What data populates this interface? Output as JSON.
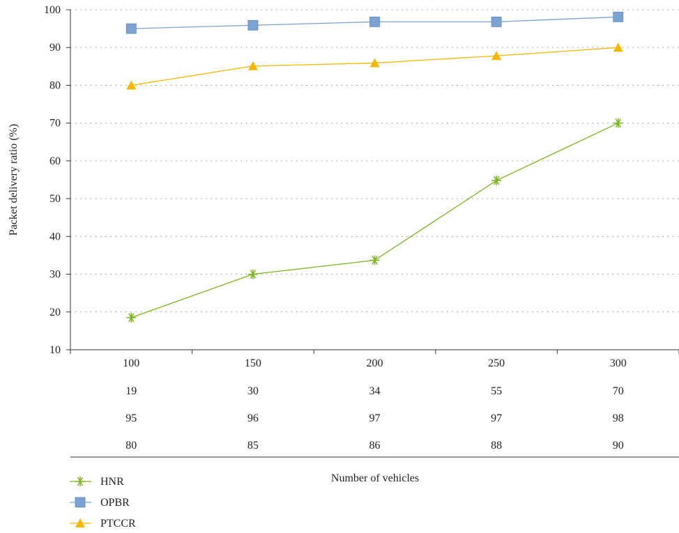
{
  "chart_data": {
    "type": "line",
    "categories": [
      "100",
      "150",
      "200",
      "250",
      "300"
    ],
    "series": [
      {
        "name": "HNR",
        "values": [
          18.5,
          30,
          33.7,
          54.8,
          70
        ],
        "table_values": [
          "19",
          "30",
          "34",
          "55",
          "70"
        ],
        "color": "#7ab51d",
        "marker": "asterisk"
      },
      {
        "name": "OPBR",
        "values": [
          95,
          95.9,
          96.8,
          96.8,
          98.1
        ],
        "table_values": [
          "95",
          "96",
          "97",
          "97",
          "98"
        ],
        "color": "#7ba3d4",
        "marker": "square"
      },
      {
        "name": "PTCCR",
        "values": [
          80,
          85.1,
          85.9,
          87.8,
          90
        ],
        "table_values": [
          "80",
          "85",
          "86",
          "88",
          "90"
        ],
        "color": "#f5b800",
        "marker": "triangle"
      }
    ],
    "title": "",
    "xlabel": "Number of vehicles",
    "ylabel": "Packet delivery ratio (%)",
    "ylim": [
      10,
      100
    ],
    "yticks": [
      "10",
      "20",
      "30",
      "40",
      "50",
      "60",
      "70",
      "80",
      "90",
      "100"
    ],
    "grid": "horizontal dotted",
    "legend_placement": "bottom-left",
    "data_table": true
  }
}
